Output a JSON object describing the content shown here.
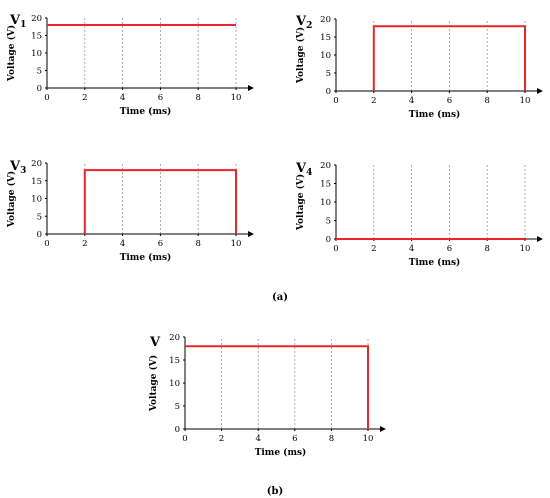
{
  "chart_data": [
    {
      "type": "line",
      "id": "v1",
      "label_main": "V",
      "label_sub": "1",
      "xlabel": "Time (ms)",
      "ylabel": "Voltage (V)",
      "xlim": [
        0,
        10
      ],
      "ylim": [
        0,
        20
      ],
      "xticks": [
        0,
        2,
        4,
        6,
        8,
        10
      ],
      "yticks": [
        0,
        5,
        10,
        15,
        20
      ],
      "grid": "vertical-dashed",
      "x": [
        0,
        10
      ],
      "y": [
        18,
        18
      ]
    },
    {
      "type": "line",
      "id": "v2",
      "label_main": "V",
      "label_sub": "2",
      "xlabel": "Time (ms)",
      "ylabel": "Voltage (V)",
      "xlim": [
        0,
        10
      ],
      "ylim": [
        0,
        20
      ],
      "xticks": [
        0,
        2,
        4,
        6,
        8,
        10
      ],
      "yticks": [
        0,
        5,
        10,
        15,
        20
      ],
      "grid": "vertical-dashed",
      "x": [
        2,
        2,
        10,
        10
      ],
      "y": [
        0,
        18,
        18,
        0
      ]
    },
    {
      "type": "line",
      "id": "v3",
      "label_main": "V",
      "label_sub": "3",
      "xlabel": "Time (ms)",
      "ylabel": "Voltage (V)",
      "xlim": [
        0,
        10
      ],
      "ylim": [
        0,
        20
      ],
      "xticks": [
        0,
        2,
        4,
        6,
        8,
        10
      ],
      "yticks": [
        0,
        5,
        10,
        15,
        20
      ],
      "grid": "vertical-dashed",
      "x": [
        2,
        2,
        10,
        10
      ],
      "y": [
        0,
        18,
        18,
        0
      ]
    },
    {
      "type": "line",
      "id": "v4",
      "label_main": "V",
      "label_sub": "4",
      "xlabel": "Time (ms)",
      "ylabel": "Voltage (V)",
      "xlim": [
        0,
        10
      ],
      "ylim": [
        0,
        20
      ],
      "xticks": [
        0,
        2,
        4,
        6,
        8,
        10
      ],
      "yticks": [
        0,
        5,
        10,
        15,
        20
      ],
      "grid": "vertical-dashed",
      "x": [
        0,
        10
      ],
      "y": [
        0,
        0
      ]
    },
    {
      "type": "line",
      "id": "v",
      "label_main": "V",
      "label_sub": "",
      "xlabel": "Time (ms)",
      "ylabel": "Voltage (V)",
      "xlim": [
        0,
        10
      ],
      "ylim": [
        0,
        20
      ],
      "xticks": [
        0,
        2,
        4,
        6,
        8,
        10
      ],
      "yticks": [
        0,
        5,
        10,
        15,
        20
      ],
      "grid": "vertical-dashed",
      "x": [
        0,
        10,
        10
      ],
      "y": [
        18,
        18,
        0
      ]
    }
  ],
  "captions": {
    "a": "(a)",
    "b": "(b)"
  },
  "colors": {
    "trace": "#e8262b",
    "grid": "#9a9a9a",
    "axis": "#000000"
  }
}
